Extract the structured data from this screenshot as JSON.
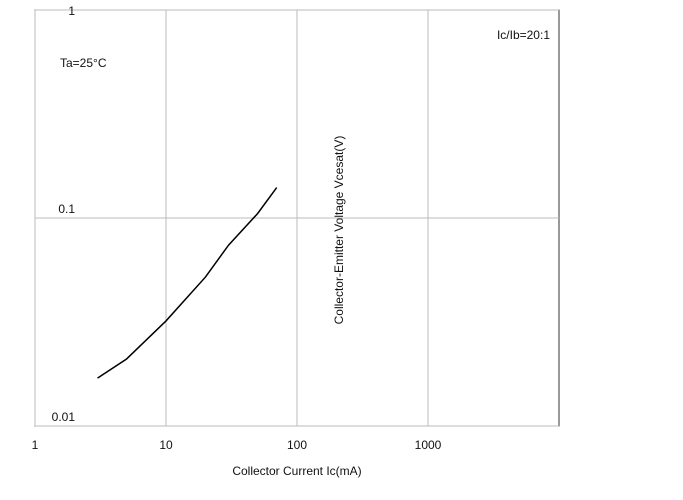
{
  "chart_data": {
    "type": "line",
    "x_label": "Collector Current   Ic(mA)",
    "y_label": "Collector-Emitter Voltage   Vcesat(V)",
    "annotations": [
      "Ic/Ib=20:1",
      "Ta=25°C"
    ],
    "x": [
      3,
      5,
      10,
      20,
      30,
      50,
      70
    ],
    "series": [
      {
        "color": "#000000",
        "values": [
          0.017,
          0.021,
          0.032,
          0.052,
          0.074,
          0.105,
          0.14
        ]
      }
    ],
    "log_x": true,
    "log_y": true,
    "xlim": [
      1,
      10000
    ],
    "xticks": [
      1,
      10,
      100,
      1000
    ],
    "ylim": [
      0.01,
      1
    ],
    "yticks": [
      0.01,
      0.1,
      1
    ],
    "grid": true
  }
}
